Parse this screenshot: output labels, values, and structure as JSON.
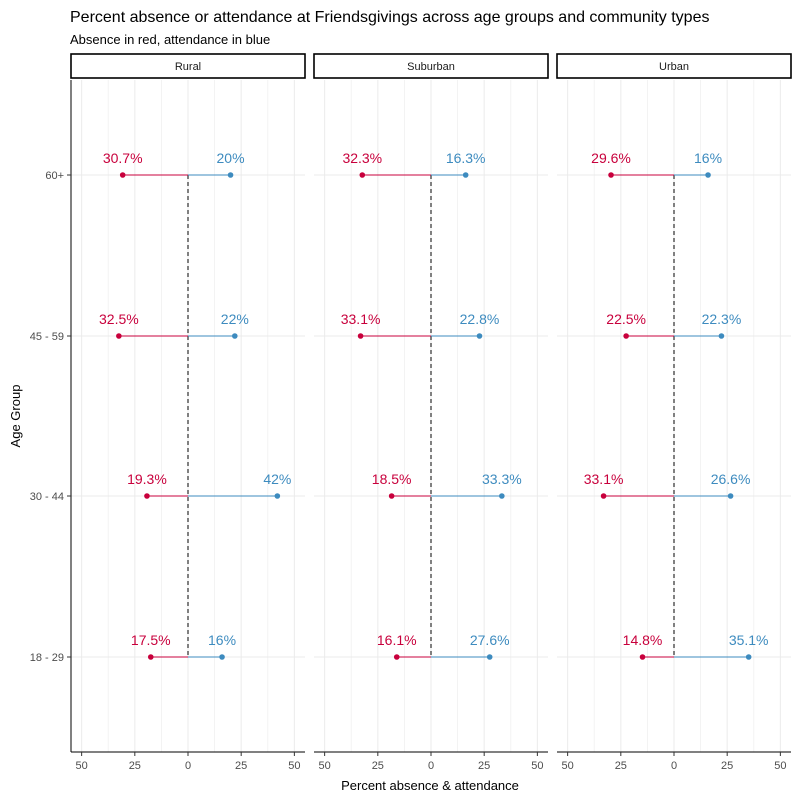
{
  "chart_data": {
    "type": "dumbbell",
    "title": "Percent absence or attendance at Friendsgivings across age groups and community types",
    "subtitle": "Absence in red, attendance in blue",
    "xlabel": "Percent absence & attendance",
    "ylabel": "Age Group",
    "xlim": [
      -55,
      55
    ],
    "x_ticks": [
      -50,
      -25,
      0,
      25,
      50
    ],
    "x_tick_labels": [
      "50",
      "25",
      "0",
      "25",
      "50"
    ],
    "categories": [
      "18 - 29",
      "30 - 44",
      "45 - 59",
      "60+"
    ],
    "colors": {
      "absence": "#c8003c",
      "attendance": "#3d8bbf"
    },
    "panels": [
      {
        "name": "Rural",
        "absence": [
          17.5,
          19.3,
          32.5,
          30.7
        ],
        "attendance": [
          16,
          42,
          22,
          20
        ],
        "absence_labels": [
          "17.5%",
          "19.3%",
          "32.5%",
          "30.7%"
        ],
        "attendance_labels": [
          "16%",
          "42%",
          "22%",
          "20%"
        ]
      },
      {
        "name": "Suburban",
        "absence": [
          16.1,
          18.5,
          33.1,
          32.3
        ],
        "attendance": [
          27.6,
          33.3,
          22.8,
          16.3
        ],
        "absence_labels": [
          "16.1%",
          "18.5%",
          "33.1%",
          "32.3%"
        ],
        "attendance_labels": [
          "27.6%",
          "33.3%",
          "22.8%",
          "16.3%"
        ]
      },
      {
        "name": "Urban",
        "absence": [
          14.8,
          33.1,
          22.5,
          29.6
        ],
        "attendance": [
          35.1,
          26.6,
          22.3,
          16
        ],
        "absence_labels": [
          "14.8%",
          "33.1%",
          "22.5%",
          "29.6%"
        ],
        "attendance_labels": [
          "35.1%",
          "26.6%",
          "22.3%",
          "16%"
        ]
      }
    ]
  }
}
